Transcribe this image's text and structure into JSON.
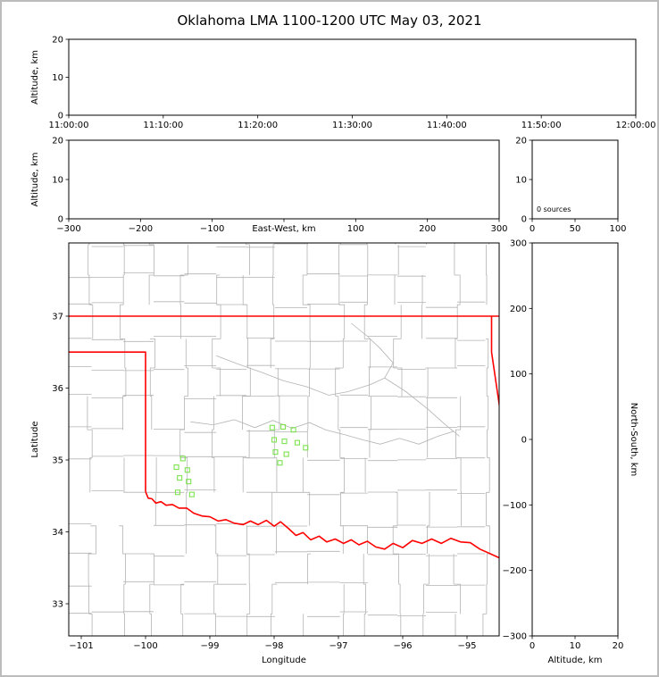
{
  "title": "Oklahoma LMA 1100-1200 UTC May 03, 2021",
  "colors": {
    "background": "#ffffff",
    "frame_border": "#bcbcbc",
    "axis": "#000000",
    "county_line": "#b3b3b3",
    "stream_gray": "#b3b3b3",
    "state_border": "#ff0000",
    "station": "#7de34f"
  },
  "chart_data": [
    {
      "id": "time-height",
      "type": "scatter",
      "xlabel": "",
      "ylabel": "Altitude, km",
      "xlim": [
        0,
        60
      ],
      "ylim": [
        0,
        20
      ],
      "xtick_values": [
        0,
        10,
        20,
        30,
        40,
        50,
        60
      ],
      "xtick_labels": [
        "11:00:00",
        "11:10:00",
        "11:20:00",
        "11:30:00",
        "11:40:00",
        "11:50:00",
        "12:00:00"
      ],
      "ytick_values": [
        0,
        10,
        20
      ],
      "ytick_labels": [
        "0",
        "10",
        "20"
      ],
      "points": []
    },
    {
      "id": "ew-height",
      "type": "scatter",
      "xlabel": "East-West, km",
      "ylabel": "Altitude, km",
      "xlim": [
        -300,
        300
      ],
      "ylim": [
        0,
        20
      ],
      "xtick_values": [
        -300,
        -200,
        -100,
        0,
        100,
        200,
        300
      ],
      "xtick_labels": [
        "−300",
        "−200",
        "−100",
        "",
        "100",
        "200",
        "300"
      ],
      "ytick_values": [
        0,
        10,
        20
      ],
      "ytick_labels": [
        "0",
        "10",
        "20"
      ],
      "points": []
    },
    {
      "id": "alt-histogram",
      "type": "line",
      "xlabel": "",
      "ylabel": "",
      "annotation": "0 sources",
      "xlim": [
        0,
        100
      ],
      "ylim": [
        0,
        20
      ],
      "xtick_values": [
        0,
        50,
        100
      ],
      "xtick_labels": [
        "0",
        "50",
        "100"
      ],
      "ytick_values": [
        0,
        10,
        20
      ],
      "ytick_labels": [
        "0",
        "10",
        "20"
      ],
      "points": []
    },
    {
      "id": "plan-map",
      "type": "scatter",
      "xlabel": "Longitude",
      "ylabel": "Latitude",
      "xlim": [
        -101.1944,
        -94.5
      ],
      "ylim": [
        32.5528,
        38.0186
      ],
      "xtick_values": [
        -101,
        -100,
        -99,
        -98,
        -97,
        -96,
        -95
      ],
      "xtick_labels": [
        "−101",
        "−100",
        "−99",
        "−98",
        "−97",
        "−96",
        "−95"
      ],
      "ytick_values": [
        33,
        34,
        35,
        36,
        37
      ],
      "ytick_labels": [
        "33",
        "34",
        "35",
        "36",
        "37"
      ],
      "stations": [
        [
          -98.03,
          35.45
        ],
        [
          -97.86,
          35.46
        ],
        [
          -97.7,
          35.42
        ],
        [
          -98.0,
          35.28
        ],
        [
          -97.84,
          35.26
        ],
        [
          -97.64,
          35.24
        ],
        [
          -97.98,
          35.11
        ],
        [
          -97.81,
          35.08
        ],
        [
          -97.51,
          35.17
        ],
        [
          -97.91,
          34.96
        ],
        [
          -99.42,
          35.02
        ],
        [
          -99.52,
          34.9
        ],
        [
          -99.35,
          34.86
        ],
        [
          -99.47,
          34.75
        ],
        [
          -99.33,
          34.7
        ],
        [
          -99.5,
          34.55
        ],
        [
          -99.28,
          34.52
        ]
      ],
      "state_border": [
        [
          [
            -101.1944,
            37.0
          ],
          [
            -94.5,
            37.0
          ]
        ],
        [
          [
            -101.1944,
            36.5
          ],
          [
            -100.0,
            36.5
          ],
          [
            -100.0,
            34.56
          ]
        ],
        [
          [
            -94.618,
            37.0
          ],
          [
            -94.618,
            36.5
          ],
          [
            -94.43,
            35.35
          ]
        ]
      ],
      "red_river": [
        [
          -100.0,
          34.56
        ],
        [
          -99.96,
          34.47
        ],
        [
          -99.9,
          34.46
        ],
        [
          -99.84,
          34.4
        ],
        [
          -99.76,
          34.42
        ],
        [
          -99.68,
          34.37
        ],
        [
          -99.58,
          34.38
        ],
        [
          -99.48,
          34.33
        ],
        [
          -99.36,
          34.33
        ],
        [
          -99.25,
          34.26
        ],
        [
          -99.12,
          34.22
        ],
        [
          -99.0,
          34.21
        ],
        [
          -98.87,
          34.15
        ],
        [
          -98.75,
          34.17
        ],
        [
          -98.62,
          34.12
        ],
        [
          -98.48,
          34.1
        ],
        [
          -98.37,
          34.15
        ],
        [
          -98.25,
          34.1
        ],
        [
          -98.12,
          34.16
        ],
        [
          -98.0,
          34.08
        ],
        [
          -97.9,
          34.14
        ],
        [
          -97.78,
          34.05
        ],
        [
          -97.66,
          33.95
        ],
        [
          -97.55,
          33.99
        ],
        [
          -97.43,
          33.89
        ],
        [
          -97.3,
          33.94
        ],
        [
          -97.18,
          33.86
        ],
        [
          -97.05,
          33.9
        ],
        [
          -96.92,
          33.84
        ],
        [
          -96.8,
          33.89
        ],
        [
          -96.68,
          33.82
        ],
        [
          -96.55,
          33.87
        ],
        [
          -96.42,
          33.79
        ],
        [
          -96.28,
          33.76
        ],
        [
          -96.15,
          33.84
        ],
        [
          -96.0,
          33.78
        ],
        [
          -95.85,
          33.88
        ],
        [
          -95.7,
          33.84
        ],
        [
          -95.55,
          33.9
        ],
        [
          -95.4,
          33.84
        ],
        [
          -95.25,
          33.91
        ],
        [
          -95.1,
          33.86
        ],
        [
          -94.95,
          33.85
        ],
        [
          -94.8,
          33.76
        ],
        [
          -94.65,
          33.7
        ],
        [
          -94.5,
          33.64
        ]
      ],
      "streams": [
        [
          [
            -99.3,
            35.53
          ],
          [
            -98.95,
            35.49
          ],
          [
            -98.62,
            35.56
          ],
          [
            -98.3,
            35.45
          ],
          [
            -98.02,
            35.55
          ],
          [
            -97.72,
            35.44
          ],
          [
            -97.45,
            35.52
          ],
          [
            -97.2,
            35.42
          ],
          [
            -96.9,
            35.35
          ],
          [
            -96.62,
            35.28
          ],
          [
            -96.35,
            35.22
          ],
          [
            -96.05,
            35.3
          ],
          [
            -95.75,
            35.22
          ],
          [
            -95.45,
            35.33
          ],
          [
            -95.2,
            35.4
          ]
        ],
        [
          [
            -96.8,
            36.9
          ],
          [
            -96.55,
            36.72
          ],
          [
            -96.35,
            36.55
          ],
          [
            -96.15,
            36.35
          ],
          [
            -96.28,
            36.14
          ],
          [
            -95.95,
            35.95
          ],
          [
            -95.6,
            35.7
          ],
          [
            -95.35,
            35.5
          ],
          [
            -95.12,
            35.33
          ]
        ],
        [
          [
            -98.9,
            36.45
          ],
          [
            -98.55,
            36.33
          ],
          [
            -98.2,
            36.22
          ],
          [
            -97.85,
            36.1
          ],
          [
            -97.5,
            36.02
          ],
          [
            -97.15,
            35.9
          ],
          [
            -96.85,
            35.95
          ],
          [
            -96.5,
            36.05
          ],
          [
            -96.28,
            36.14
          ]
        ]
      ],
      "county_grid": {
        "seed": 11,
        "lon_start": -101.32,
        "lon_end": -94.3,
        "lon_step": 0.48,
        "lat_start": 32.45,
        "lat_end": 38.15,
        "lat_step": 0.44,
        "jitter": 0.07
      }
    },
    {
      "id": "ns-height",
      "type": "scatter",
      "xlabel": "Altitude, km",
      "ylabel": "North-South, km",
      "ylabel_side": "right",
      "xlim": [
        0,
        20
      ],
      "ylim": [
        -300,
        300
      ],
      "xtick_values": [
        0,
        10,
        20
      ],
      "xtick_labels": [
        "0",
        "10",
        "20"
      ],
      "ytick_values": [
        300,
        200,
        100,
        0,
        -100,
        -200,
        -300
      ],
      "ytick_labels": [
        "300",
        "200",
        "100",
        "0",
        "−100",
        "−200",
        "−300"
      ],
      "points": []
    }
  ]
}
